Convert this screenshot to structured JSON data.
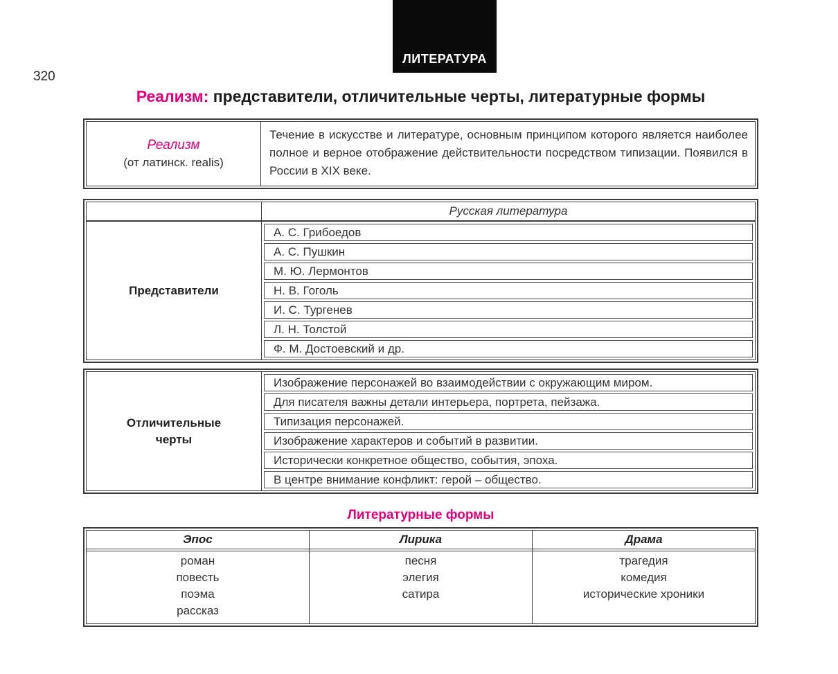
{
  "page": {
    "number": "320",
    "logo": "ЛИТЕРАТУРА"
  },
  "title": {
    "accent": "Реализм:",
    "rest": " представители, отличительные черты, литературные формы"
  },
  "definition_table": {
    "term": "Реализм",
    "term_origin": "(от латинск. realis)",
    "definition": "Течение в искусстве и литературе, основным принципом которого является наиболее полное и верное отображение действительности посредством типизации. Появился в России в XIX веке."
  },
  "representatives_table": {
    "header": "Русская литература",
    "label": "Представители",
    "authors": [
      "А. С. Грибоедов",
      "А. С. Пушкин",
      "М. Ю. Лермонтов",
      "Н. В. Гоголь",
      "И. С. Тургенев",
      "Л. Н. Толстой",
      "Ф. М. Достоевский и др."
    ]
  },
  "features_table": {
    "label": "Отличительные\nчерты",
    "features": [
      "Изображение персонажей во взаимодействии с окружающим миром.",
      "Для писателя важны детали интерьера, портрета, пейзажа.",
      "Типизация персонажей.",
      "Изображение характеров и событий в развитии.",
      "Исторически конкретное общество, события, эпоха.",
      "В центре внимание конфликт: герой – общество."
    ]
  },
  "forms_section": {
    "heading": "Литературные формы",
    "columns": [
      {
        "header": "Эпос",
        "items": [
          "роман",
          "повесть",
          "поэма",
          "рассказ"
        ]
      },
      {
        "header": "Лирика",
        "items": [
          "песня",
          "элегия",
          "сатира"
        ]
      },
      {
        "header": "Драма",
        "items": [
          "трагедия",
          "комедия",
          "исторические хроники"
        ]
      }
    ]
  },
  "colors": {
    "accent": "#e2017b",
    "text": "#2f2f2f",
    "border": "#3a3a3a",
    "logo_bg": "#0b0b0b"
  }
}
